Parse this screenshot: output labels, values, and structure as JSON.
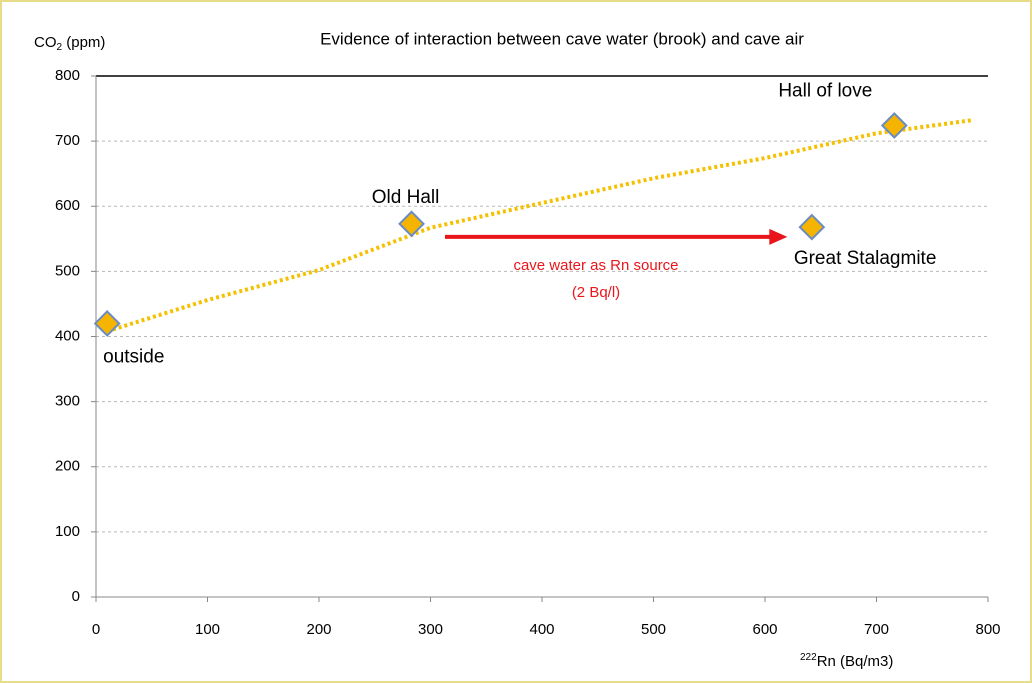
{
  "chart_data": {
    "type": "scatter",
    "title": "Evidence of interaction between cave water (brook) and cave air",
    "y_label_parts": [
      "CO",
      "2",
      " (ppm)"
    ],
    "x_label_parts": [
      "222",
      "Rn (Bq/m3)"
    ],
    "x": [
      10,
      283,
      642,
      716
    ],
    "values": [
      420,
      573,
      568,
      724
    ],
    "point_labels": [
      "outside",
      "Old Hall",
      "Great Stalagmite",
      "Hall of love"
    ],
    "color": "#f5b400",
    "edge_color": "#6a8cc4",
    "trendline": {
      "x": [
        10,
        100,
        200,
        300,
        400,
        500,
        600,
        700,
        785
      ],
      "values": [
        408,
        456,
        502,
        567,
        605,
        643,
        674,
        712,
        732
      ],
      "color": "#f5c000"
    },
    "arrow": {
      "x": [
        313,
        620
      ],
      "values": [
        553,
        553
      ],
      "color": "#e8161b"
    },
    "annotation": [
      "cave water as Rn source",
      "(2 Bq/l)"
    ],
    "xlim": [
      0,
      800
    ],
    "xticks": [
      0,
      100,
      200,
      300,
      400,
      500,
      600,
      700,
      800
    ],
    "ylim": [
      0,
      800
    ],
    "yticks": [
      0,
      100,
      200,
      300,
      400,
      500,
      600,
      700,
      800
    ],
    "grid": true
  }
}
